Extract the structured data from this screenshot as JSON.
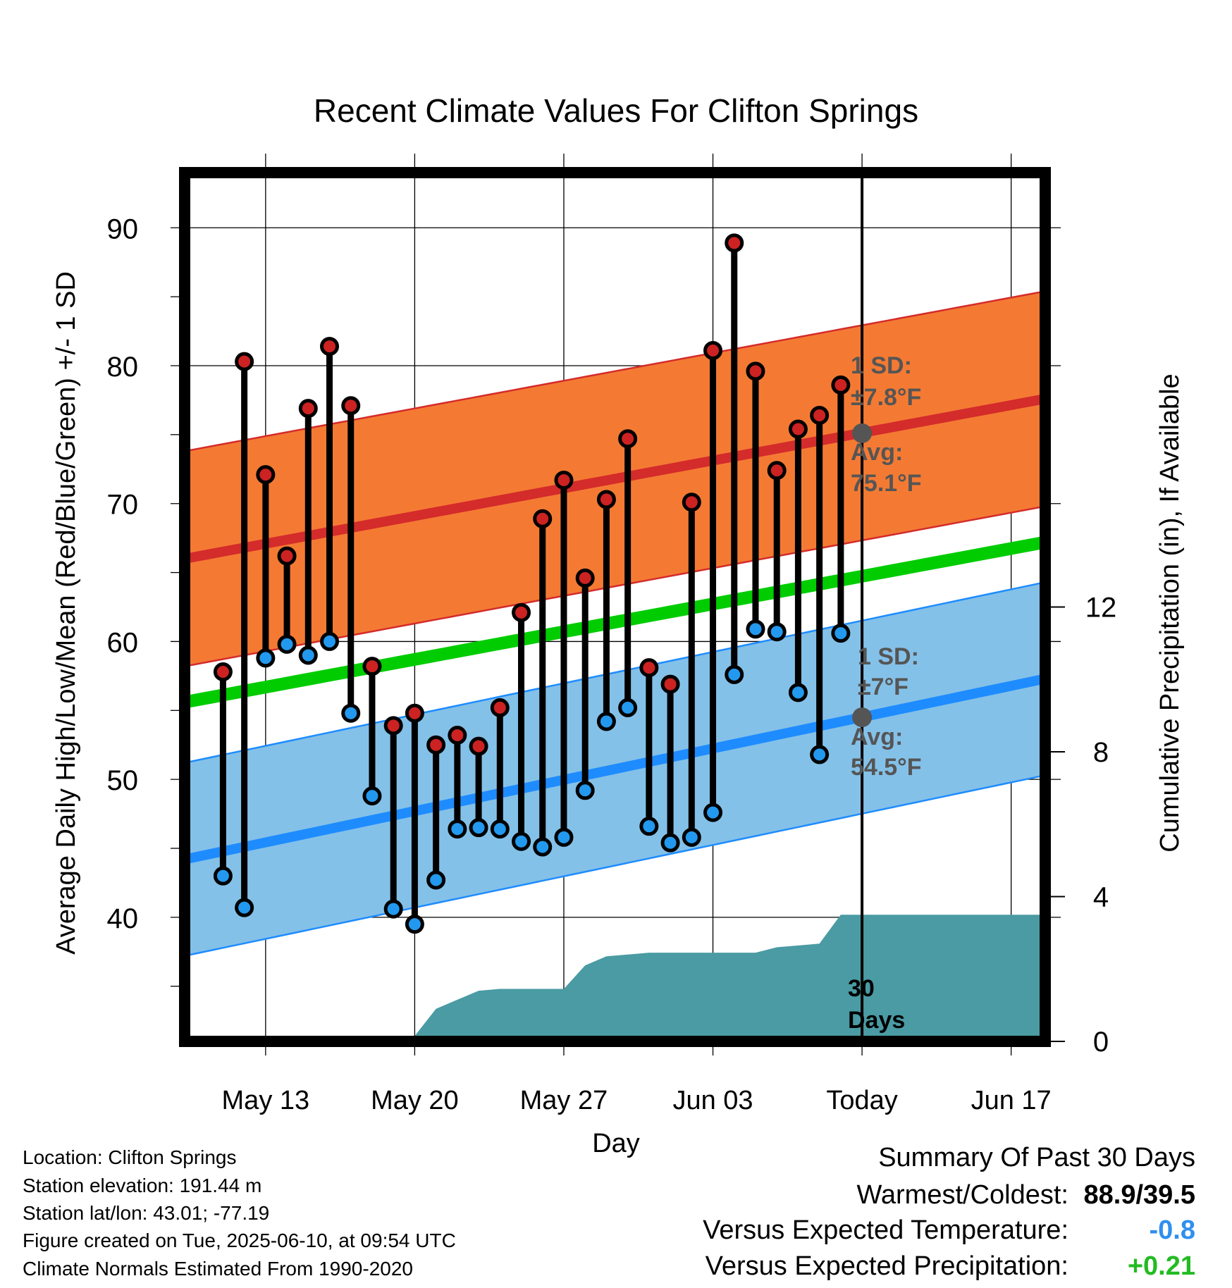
{
  "chart_data": {
    "type": "line",
    "title": "Recent Climate Values For Clifton Springs",
    "xlabel": "Day",
    "ylabel": "Average Daily High/Low/Mean (Red/Blue/Green) +/- 1 SD",
    "y2label": "Cumulative Precipitation (in), If Available",
    "x_tick_labels": [
      "May 13",
      "May 20",
      "May 27",
      "Jun 03",
      "Today",
      "Jun 17"
    ],
    "x_tick_days": [
      2,
      9,
      16,
      23,
      30,
      37
    ],
    "xlim": [
      -1.8,
      38.6
    ],
    "ylim": [
      31,
      94
    ],
    "y_ticks": [
      40,
      50,
      60,
      70,
      80,
      90
    ],
    "y2lim": [
      0,
      24
    ],
    "y2_ticks": [
      0,
      4,
      8,
      12
    ],
    "grid": true,
    "days": [
      0,
      1,
      2,
      3,
      4,
      5,
      6,
      7,
      8,
      9,
      10,
      11,
      12,
      13,
      14,
      15,
      16,
      17,
      18,
      19,
      20,
      21,
      22,
      23,
      24,
      25,
      26,
      27,
      28,
      29
    ],
    "highs": [
      57.8,
      80.3,
      72.1,
      66.2,
      76.9,
      81.4,
      77.1,
      58.2,
      53.9,
      54.8,
      52.5,
      53.2,
      52.4,
      55.2,
      62.1,
      68.9,
      71.7,
      64.6,
      70.3,
      74.7,
      58.1,
      56.9,
      70.1,
      81.1,
      88.9,
      79.6,
      72.4,
      75.4,
      76.4,
      78.6
    ],
    "lows": [
      43.0,
      40.7,
      58.8,
      59.8,
      59.0,
      60.0,
      54.8,
      48.8,
      40.6,
      39.5,
      42.7,
      46.4,
      46.5,
      46.4,
      45.5,
      45.1,
      45.8,
      49.2,
      54.2,
      55.2,
      46.6,
      45.4,
      45.8,
      47.6,
      57.6,
      60.9,
      60.7,
      56.3,
      51.8,
      60.6
    ],
    "normal_high": {
      "start": 66.0,
      "end": 77.6,
      "sd": 7.8
    },
    "normal_low": {
      "start": 44.2,
      "end": 57.3,
      "sd": 7.0
    },
    "normal_mean": {
      "start": 55.6,
      "end": 67.2
    },
    "precip_days": [
      0,
      5,
      5.5,
      6,
      6.5,
      7,
      8,
      9,
      10,
      11,
      12,
      13,
      14,
      15,
      16,
      17,
      18,
      19,
      20,
      21,
      22,
      23,
      24,
      25,
      26,
      27,
      28,
      29,
      30,
      38.6
    ],
    "precip_cum": [
      0,
      0,
      0,
      0.1,
      0.15,
      0.15,
      0.15,
      0.15,
      0.9,
      1.15,
      1.4,
      1.45,
      1.45,
      1.45,
      1.45,
      2.1,
      2.35,
      2.4,
      2.45,
      2.45,
      2.45,
      2.45,
      2.45,
      2.45,
      2.6,
      2.65,
      2.7,
      3.5,
      3.5,
      3.5
    ],
    "annotations": {
      "high_sd_label": "1 SD:",
      "high_sd_value": "±7.8°F",
      "high_avg_label": "Avg:",
      "high_avg_value": "75.1°F",
      "high_avg_point": 75.1,
      "low_sd_label": "1 SD:",
      "low_sd_value": "±7°F",
      "low_avg_label": "Avg:",
      "low_avg_value": "54.5°F",
      "low_avg_point": 54.5,
      "days_count": "30",
      "days_word": "Days"
    },
    "colors": {
      "high_band": "#f47a33",
      "high_line": "#d42b2b",
      "low_band": "#84c1e8",
      "low_line": "#1e8cff",
      "mean_line": "#00cc00",
      "precip": "#4a9ba3",
      "high_dot": "#cc2222",
      "low_dot": "#2299ee",
      "annotation": "#555555"
    }
  },
  "info": {
    "location": "Location: Clifton Springs",
    "elevation": "Station elevation: 191.44 m",
    "latlon": "Station lat/lon: 43.01; -77.19",
    "created": "Figure created on Tue, 2025-06-10, at 09:54 UTC",
    "normals": "Climate Normals Estimated From 1990-2020"
  },
  "summary": {
    "heading": "Summary Of Past 30 Days",
    "warm_label": "Warmest/Coldest:",
    "warm_value": "88.9/39.5",
    "temp_label": "Versus Expected Temperature:",
    "temp_value": "-0.8",
    "temp_color": "#2f8fef",
    "precip_label": "Versus Expected Precipitation:",
    "precip_value": "+0.21",
    "precip_color": "#22bb22"
  }
}
